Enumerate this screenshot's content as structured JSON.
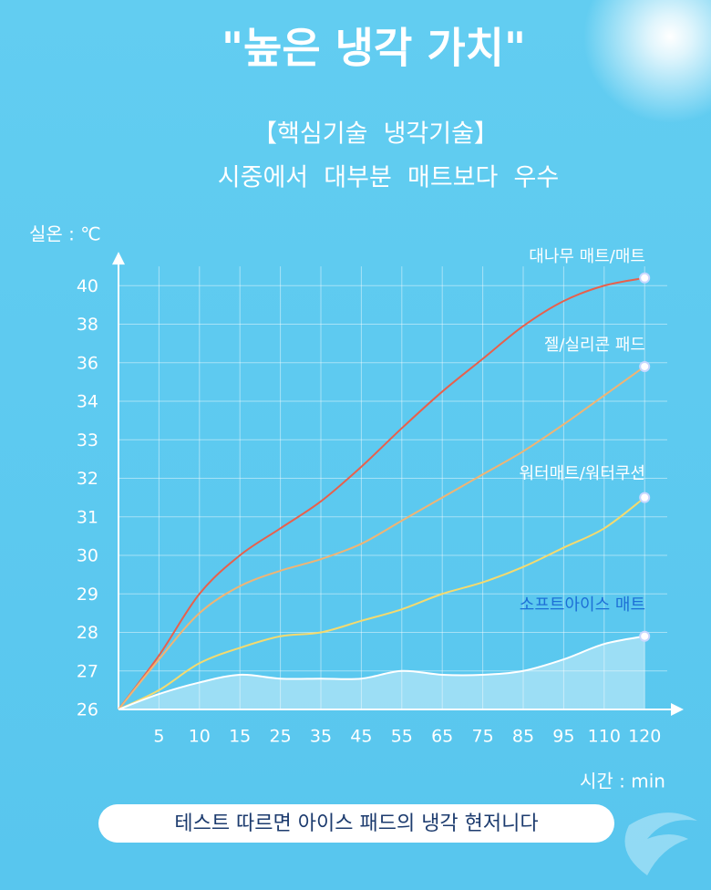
{
  "chart_data": {
    "type": "line",
    "title": "\"높은 냉각 가치\"",
    "subtitle": [
      "【핵심기술  냉각기술】",
      "시중에서  대부분  매트보다  우수"
    ],
    "y_label": "실온 : ℃",
    "x_label": "시간 : min",
    "footer": "테스트 따르면 아이스 패드의 냉각 현저니다",
    "categories": [
      null,
      "5",
      "10",
      "15",
      "25",
      "35",
      "45",
      "55",
      "65",
      "75",
      "85",
      "95",
      "110",
      "120"
    ],
    "ylim": [
      26,
      41
    ],
    "yticks": [
      26,
      27,
      28,
      29,
      30,
      31,
      32,
      33,
      34,
      36,
      38,
      40
    ],
    "grid": true,
    "series": [
      {
        "name": "대나무  매트/매트",
        "color": "#e8604c",
        "values": [
          26,
          27.4,
          29.0,
          30.0,
          30.7,
          31.4,
          32.3,
          33.3,
          34.5,
          36.2,
          37.9,
          39.2,
          40.0,
          40.4
        ]
      },
      {
        "name": "젤/실리콘  패드",
        "color": "#f0b474",
        "values": [
          26,
          27.3,
          28.5,
          29.2,
          29.6,
          29.9,
          30.3,
          30.9,
          31.5,
          32.1,
          32.7,
          33.4,
          34.3,
          35.8
        ]
      },
      {
        "name": "워터매트/워터쿠션",
        "color": "#f5da6e",
        "values": [
          26,
          26.5,
          27.2,
          27.6,
          27.9,
          28.0,
          28.3,
          28.6,
          29.0,
          29.3,
          29.7,
          30.2,
          30.7,
          31.5
        ]
      },
      {
        "name": "소프트아이스  매트",
        "color": "#ffffff",
        "area": true,
        "values": [
          26,
          26.4,
          26.7,
          26.9,
          26.8,
          26.8,
          26.8,
          27.0,
          26.9,
          26.9,
          27.0,
          27.3,
          27.7,
          27.9
        ]
      }
    ]
  }
}
